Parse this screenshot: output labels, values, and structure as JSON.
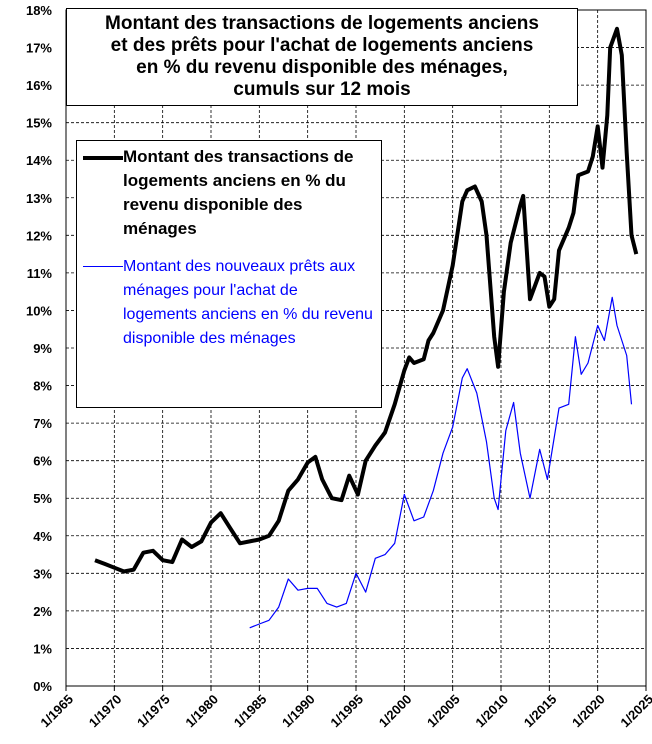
{
  "chart_data": {
    "type": "line",
    "title": [
      "Montant des transactions de logements anciens",
      "et des prêts pour l'achat de logements anciens",
      "en % du revenu disponible des ménages,",
      "cumuls sur 12 mois"
    ],
    "xlim": [
      1965,
      2025
    ],
    "xticks": [
      {
        "value": 1965,
        "label": "1/1965"
      },
      {
        "value": 1970,
        "label": "1/1970"
      },
      {
        "value": 1975,
        "label": "1/1975"
      },
      {
        "value": 1980,
        "label": "1/1980"
      },
      {
        "value": 1985,
        "label": "1/1985"
      },
      {
        "value": 1990,
        "label": "1/1990"
      },
      {
        "value": 1995,
        "label": "1/1995"
      },
      {
        "value": 2000,
        "label": "1/2000"
      },
      {
        "value": 2005,
        "label": "1/2005"
      },
      {
        "value": 2010,
        "label": "1/2010"
      },
      {
        "value": 2015,
        "label": "1/2015"
      },
      {
        "value": 2020,
        "label": "1/2020"
      },
      {
        "value": 2025,
        "label": "1/2025"
      }
    ],
    "ylim": [
      0,
      18
    ],
    "yticks": [
      {
        "value": 0,
        "label": "0%"
      },
      {
        "value": 1,
        "label": "1%"
      },
      {
        "value": 2,
        "label": "2%"
      },
      {
        "value": 3,
        "label": "3%"
      },
      {
        "value": 4,
        "label": "4%"
      },
      {
        "value": 5,
        "label": "5%"
      },
      {
        "value": 6,
        "label": "6%"
      },
      {
        "value": 7,
        "label": "7%"
      },
      {
        "value": 8,
        "label": "8%"
      },
      {
        "value": 9,
        "label": "9%"
      },
      {
        "value": 10,
        "label": "10%"
      },
      {
        "value": 11,
        "label": "11%"
      },
      {
        "value": 12,
        "label": "12%"
      },
      {
        "value": 13,
        "label": "13%"
      },
      {
        "value": 14,
        "label": "14%"
      },
      {
        "value": 15,
        "label": "15%"
      },
      {
        "value": 16,
        "label": "16%"
      },
      {
        "value": 17,
        "label": "17%"
      },
      {
        "value": 18,
        "label": "18%"
      }
    ],
    "grid": true,
    "series": [
      {
        "name": "Montant des transactions de logements anciens en % du revenu disponible des ménages",
        "color": "#000000",
        "width": 4,
        "x": [
          1968,
          1969,
          1970,
          1971,
          1972,
          1973,
          1974,
          1975,
          1976,
          1977,
          1978,
          1979,
          1980,
          1981,
          1982,
          1983,
          1984,
          1985,
          1986,
          1987,
          1988,
          1989,
          1990,
          1990.8,
          1991.5,
          1992.5,
          1993.5,
          1994.3,
          1995.2,
          1996,
          1997,
          1998,
          1999,
          2000,
          2000.5,
          2001,
          2002,
          2002.5,
          2003,
          2004,
          2005,
          2006,
          2006.5,
          2007.3,
          2008,
          2008.5,
          2009.3,
          2009.7,
          2010.3,
          2011,
          2012,
          2012.3,
          2013,
          2014,
          2014.5,
          2015,
          2015.5,
          2016,
          2017,
          2017.5,
          2018,
          2019,
          2019.5,
          2020,
          2020.5,
          2021,
          2021.3,
          2022,
          2022.5,
          2023,
          2023.5,
          2024
        ],
        "values": [
          3.35,
          3.25,
          3.15,
          3.05,
          3.1,
          3.55,
          3.6,
          3.35,
          3.3,
          3.9,
          3.7,
          3.85,
          4.35,
          4.6,
          4.2,
          3.8,
          3.85,
          3.9,
          4.0,
          4.4,
          5.2,
          5.5,
          5.95,
          6.1,
          5.5,
          5.0,
          4.95,
          5.6,
          5.1,
          6.0,
          6.4,
          6.75,
          7.5,
          8.4,
          8.75,
          8.6,
          8.7,
          9.2,
          9.4,
          10.0,
          11.2,
          12.9,
          13.2,
          13.3,
          12.9,
          12.0,
          9.3,
          8.5,
          10.5,
          11.8,
          12.8,
          13.05,
          10.3,
          11.0,
          10.9,
          10.1,
          10.3,
          11.6,
          12.2,
          12.6,
          13.6,
          13.7,
          14.1,
          14.9,
          13.8,
          15.2,
          17.0,
          17.5,
          16.8,
          14.2,
          12.0,
          11.5
        ]
      },
      {
        "name": "Montant des nouveaux prêts aux ménages pour l'achat de logements anciens en % du revenu disponible des ménages",
        "color": "#0000ff",
        "width": 1.2,
        "x": [
          1984,
          1985,
          1986,
          1987,
          1988,
          1989,
          1990,
          1991,
          1992,
          1993,
          1994,
          1995,
          1996,
          1997,
          1998,
          1999,
          2000,
          2001,
          2002,
          2003,
          2004,
          2005,
          2006,
          2006.5,
          2007.5,
          2008.5,
          2009.3,
          2009.7,
          2010.5,
          2011.3,
          2012,
          2013,
          2014,
          2014.8,
          2016,
          2017,
          2017.7,
          2018.3,
          2019,
          2020,
          2020.7,
          2021.5,
          2022,
          2023,
          2023.5
        ],
        "values": [
          1.55,
          1.65,
          1.75,
          2.1,
          2.85,
          2.55,
          2.6,
          2.6,
          2.2,
          2.1,
          2.2,
          3.0,
          2.5,
          3.4,
          3.5,
          3.8,
          5.1,
          4.4,
          4.5,
          5.2,
          6.2,
          6.9,
          8.2,
          8.45,
          7.8,
          6.5,
          5.0,
          4.7,
          6.8,
          7.55,
          6.2,
          5.0,
          6.3,
          5.5,
          7.4,
          7.5,
          9.3,
          8.3,
          8.6,
          9.6,
          9.2,
          10.35,
          9.6,
          8.8,
          7.5
        ]
      }
    ]
  }
}
